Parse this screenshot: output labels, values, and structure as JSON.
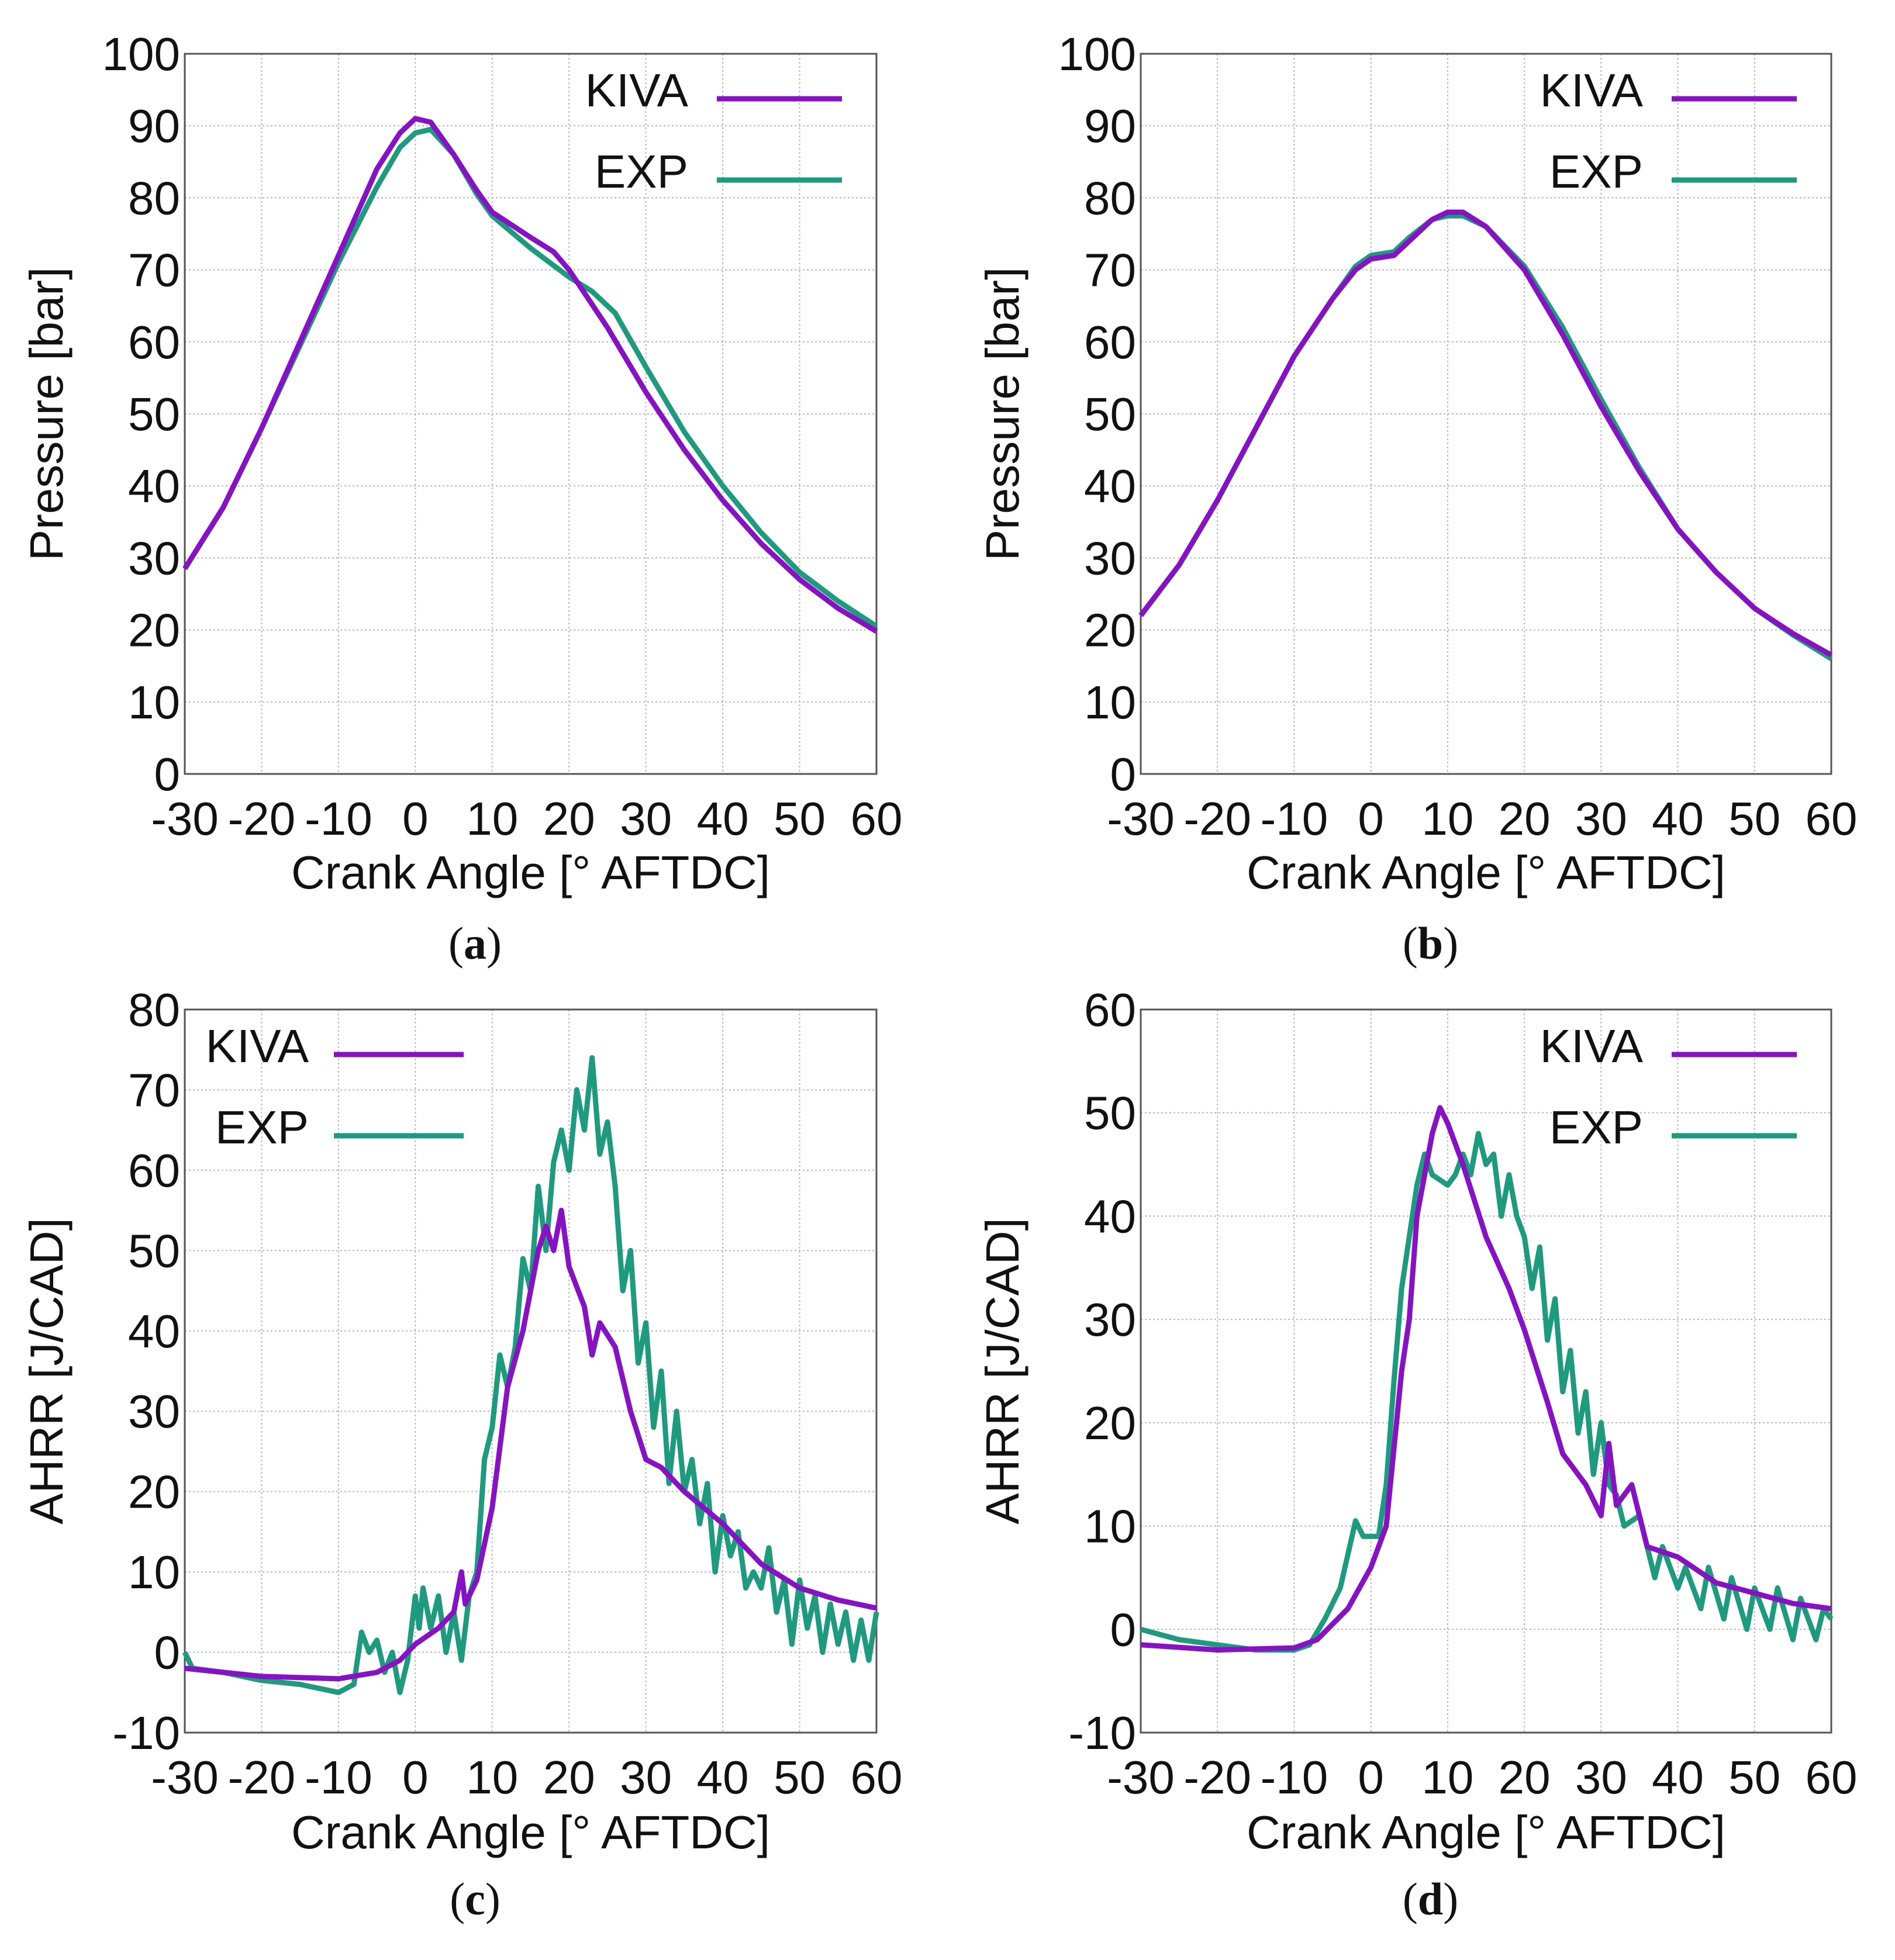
{
  "colors": {
    "kiva": "#8612c4",
    "exp": "#1e9a7e",
    "grid": "#b8b8b8",
    "axis": "#555555"
  },
  "chart_data": [
    {
      "type": "line",
      "caption_letter": "a",
      "xlabel": "Crank Angle [° AFTDC]",
      "ylabel": "Pressure  [bar]",
      "xlim": [
        -30,
        60
      ],
      "ylim": [
        0,
        100
      ],
      "xticks": [
        -30,
        -20,
        -10,
        0,
        10,
        20,
        30,
        40,
        50,
        60
      ],
      "yticks": [
        0,
        10,
        20,
        30,
        40,
        50,
        60,
        70,
        80,
        90,
        100
      ],
      "grid": true,
      "legend": "top-right",
      "series": [
        {
          "name": "KIVA",
          "x": [
            -30,
            -25,
            -20,
            -15,
            -10,
            -5,
            -2,
            0,
            2,
            5,
            8,
            10,
            15,
            18,
            20,
            25,
            30,
            35,
            40,
            45,
            50,
            55,
            60
          ],
          "y": [
            28.5,
            37,
            48,
            60,
            72,
            84,
            89,
            91,
            90.5,
            86,
            81,
            78,
            74.5,
            72.5,
            70,
            62,
            53,
            45,
            38,
            32,
            27,
            23,
            19.8
          ]
        },
        {
          "name": "EXP",
          "x": [
            -30,
            -25,
            -20,
            -15,
            -10,
            -5,
            -2,
            0,
            2,
            5,
            8,
            10,
            15,
            20,
            23,
            26,
            30,
            35,
            40,
            45,
            50,
            55,
            60
          ],
          "y": [
            28.5,
            37,
            48,
            59.5,
            71,
            81.5,
            87,
            89,
            89.5,
            86,
            80.5,
            77.5,
            73,
            69,
            67,
            64,
            56.5,
            47.5,
            40,
            33.5,
            28,
            24,
            20.5
          ]
        }
      ]
    },
    {
      "type": "line",
      "caption_letter": "b",
      "xlabel": "Crank Angle [° AFTDC]",
      "ylabel": "Pressure  [bar]",
      "xlim": [
        -30,
        60
      ],
      "ylim": [
        0,
        100
      ],
      "xticks": [
        -30,
        -20,
        -10,
        0,
        10,
        20,
        30,
        40,
        50,
        60
      ],
      "yticks": [
        0,
        10,
        20,
        30,
        40,
        50,
        60,
        70,
        80,
        90,
        100
      ],
      "grid": true,
      "legend": "top-right",
      "series": [
        {
          "name": "KIVA",
          "x": [
            -30,
            -25,
            -20,
            -15,
            -10,
            -5,
            -2,
            0,
            3,
            5,
            8,
            10,
            12,
            15,
            20,
            25,
            30,
            35,
            40,
            45,
            50,
            55,
            60
          ],
          "y": [
            22,
            29,
            38,
            48,
            58,
            66,
            70,
            71.5,
            72,
            74,
            77,
            78,
            78,
            76,
            70,
            61,
            51,
            42,
            34,
            28,
            23,
            19.5,
            16.5
          ]
        },
        {
          "name": "EXP",
          "x": [
            -30,
            -25,
            -20,
            -15,
            -10,
            -5,
            -2,
            0,
            3,
            5,
            8,
            10,
            12,
            15,
            20,
            25,
            30,
            35,
            40,
            45,
            50,
            55,
            60
          ],
          "y": [
            22,
            29,
            38,
            48,
            58,
            66,
            70.5,
            72,
            72.5,
            74.5,
            77,
            77.5,
            77.5,
            76,
            70.5,
            62,
            52,
            42.5,
            34,
            28,
            23,
            19.3,
            16
          ]
        }
      ]
    },
    {
      "type": "line",
      "caption_letter": "c",
      "xlabel": "Crank Angle [° AFTDC]",
      "ylabel": "AHRR  [J/CAD]",
      "xlim": [
        -30,
        60
      ],
      "ylim": [
        -10,
        80
      ],
      "xticks": [
        -30,
        -20,
        -10,
        0,
        10,
        20,
        30,
        40,
        50,
        60
      ],
      "yticks": [
        -10,
        0,
        10,
        20,
        30,
        40,
        50,
        60,
        70,
        80
      ],
      "grid": true,
      "legend": "top-left",
      "series": [
        {
          "name": "KIVA",
          "x": [
            -30,
            -20,
            -10,
            -5,
            -2,
            0,
            3,
            5,
            6,
            6.5,
            8,
            10,
            12,
            14,
            16,
            17,
            18,
            19,
            20,
            22,
            23,
            24,
            26,
            28,
            30,
            32,
            35,
            40,
            45,
            50,
            55,
            60
          ],
          "y": [
            -2,
            -3,
            -3.3,
            -2.5,
            -1,
            1,
            3,
            5,
            10,
            6,
            9,
            18,
            33,
            40,
            50,
            53,
            50,
            55,
            48,
            43,
            37,
            41,
            38,
            30,
            24,
            23,
            20,
            16,
            11,
            8,
            6.5,
            5.5
          ]
        },
        {
          "name": "EXP",
          "x": [
            -30,
            -29,
            -25,
            -20,
            -15,
            -10,
            -8,
            -7,
            -6,
            -5,
            -4,
            -3,
            -2,
            -1,
            0,
            0.5,
            1,
            2,
            3,
            4,
            5,
            6,
            7,
            8,
            9,
            10,
            11,
            12,
            13,
            14,
            15,
            16,
            17,
            18,
            19,
            20,
            21,
            22,
            23,
            24,
            25,
            26,
            27,
            28,
            29,
            30,
            31,
            32,
            33,
            34,
            35,
            36,
            37,
            38,
            39,
            40,
            41,
            42,
            43,
            44,
            45,
            46,
            47,
            48,
            49,
            50,
            51,
            52,
            53,
            54,
            55,
            56,
            57,
            58,
            59,
            60
          ],
          "y": [
            0,
            -2,
            -2.5,
            -3.5,
            -4,
            -5,
            -4,
            2.5,
            0,
            1.5,
            -2.5,
            0,
            -5,
            -1,
            7,
            3,
            8,
            3,
            7,
            0,
            5,
            -1,
            7,
            10,
            24,
            28,
            37,
            33,
            38,
            49,
            45,
            58,
            50,
            61,
            65,
            60,
            70,
            65,
            74,
            62,
            66,
            58,
            45,
            50,
            36,
            41,
            28,
            35,
            21,
            30,
            20,
            24,
            16,
            21,
            10,
            17,
            12,
            15,
            8,
            10,
            8,
            13,
            5,
            9,
            1,
            9,
            3,
            7,
            0,
            6,
            1,
            5,
            -1,
            4,
            -1,
            5
          ]
        }
      ]
    },
    {
      "type": "line",
      "caption_letter": "d",
      "xlabel": "Crank Angle [° AFTDC]",
      "ylabel": "AHRR  [J/CAD]",
      "xlim": [
        -30,
        60
      ],
      "ylim": [
        -10,
        60
      ],
      "xticks": [
        -30,
        -20,
        -10,
        0,
        10,
        20,
        30,
        40,
        50,
        60
      ],
      "yticks": [
        -10,
        0,
        10,
        20,
        30,
        40,
        50,
        60
      ],
      "grid": true,
      "legend": "top-right",
      "series": [
        {
          "name": "KIVA",
          "x": [
            -30,
            -20,
            -10,
            -7,
            -3,
            0,
            2,
            4,
            5,
            6,
            8,
            9,
            10,
            12,
            15,
            18,
            20,
            23,
            25,
            28,
            30,
            31,
            32,
            34,
            36,
            40,
            45,
            50,
            55,
            60
          ],
          "y": [
            -1.5,
            -2,
            -1.8,
            -1,
            2,
            6,
            10,
            25,
            30,
            40,
            48,
            50.5,
            49,
            45,
            38,
            33,
            29,
            22,
            17,
            14,
            11,
            18,
            12,
            14,
            8,
            7,
            4.5,
            3.5,
            2.5,
            2
          ]
        },
        {
          "name": "EXP",
          "x": [
            -30,
            -25,
            -20,
            -15,
            -10,
            -8,
            -6,
            -4,
            -2,
            -1,
            1,
            2,
            3,
            4,
            5,
            6,
            7,
            8,
            10,
            11,
            12,
            13,
            14,
            15,
            16,
            17,
            18,
            19,
            20,
            21,
            22,
            23,
            24,
            25,
            26,
            27,
            28,
            29,
            30,
            31,
            32,
            33,
            35,
            37,
            38,
            40,
            41,
            43,
            44,
            46,
            47,
            49,
            50,
            52,
            53,
            55,
            56,
            58,
            59,
            60
          ],
          "y": [
            0,
            -1,
            -1.5,
            -2,
            -2,
            -1.5,
            1,
            4,
            10.5,
            9,
            9,
            14,
            24,
            33,
            38,
            43,
            46,
            44,
            43,
            44,
            46,
            44,
            48,
            45,
            46,
            40,
            44,
            40,
            38,
            33,
            37,
            28,
            32,
            23,
            27,
            19,
            23,
            15,
            20,
            14,
            13,
            10,
            11,
            5,
            8,
            4,
            6,
            2,
            6,
            1,
            5,
            0,
            4,
            0,
            4,
            -1,
            3,
            -1,
            2,
            1
          ]
        }
      ]
    }
  ]
}
